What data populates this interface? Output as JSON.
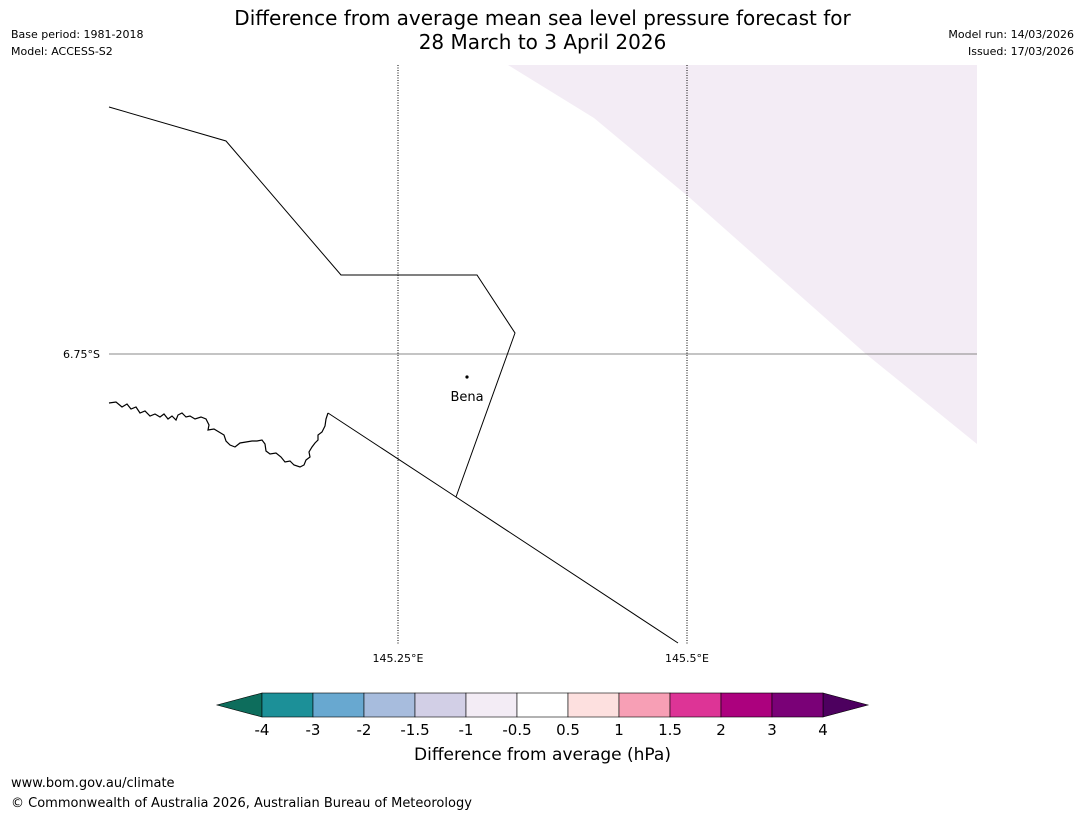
{
  "header": {
    "base_period": "Base period: 1981-2018",
    "model": "Model: ACCESS-S2",
    "title_line1": "Difference from average mean sea level pressure forecast for",
    "title_line2": "28 March to 3 April 2026",
    "model_run": "Model run: 14/03/2026",
    "issued": "Issued: 17/03/2026"
  },
  "map": {
    "lat_label": "6.75°S",
    "lon_labels": [
      "145.25°E",
      "145.5°E"
    ],
    "place": {
      "name": "Bena"
    },
    "shading_color": "#f3ecf5"
  },
  "colorbar": {
    "label": "Difference from average (hPa)",
    "ticks": [
      "-4",
      "-3",
      "-2",
      "-1.5",
      "-1",
      "-0.5",
      "0.5",
      "1",
      "1.5",
      "2",
      "3",
      "4"
    ],
    "colors": {
      "under": "#0d6d5c",
      "bins": [
        "#1c9098",
        "#68a8d0",
        "#a7bcdd",
        "#d2cfe6",
        "#f3ecf5",
        "#ffffff",
        "#fde0df",
        "#f79fb5",
        "#dd3496",
        "#ac017e",
        "#7a0177"
      ],
      "over": "#4d005f"
    }
  },
  "footer": {
    "url": "www.bom.gov.au/climate",
    "copyright": "© Commonwealth of Australia 2026, Australian Bureau of Meteorology"
  }
}
